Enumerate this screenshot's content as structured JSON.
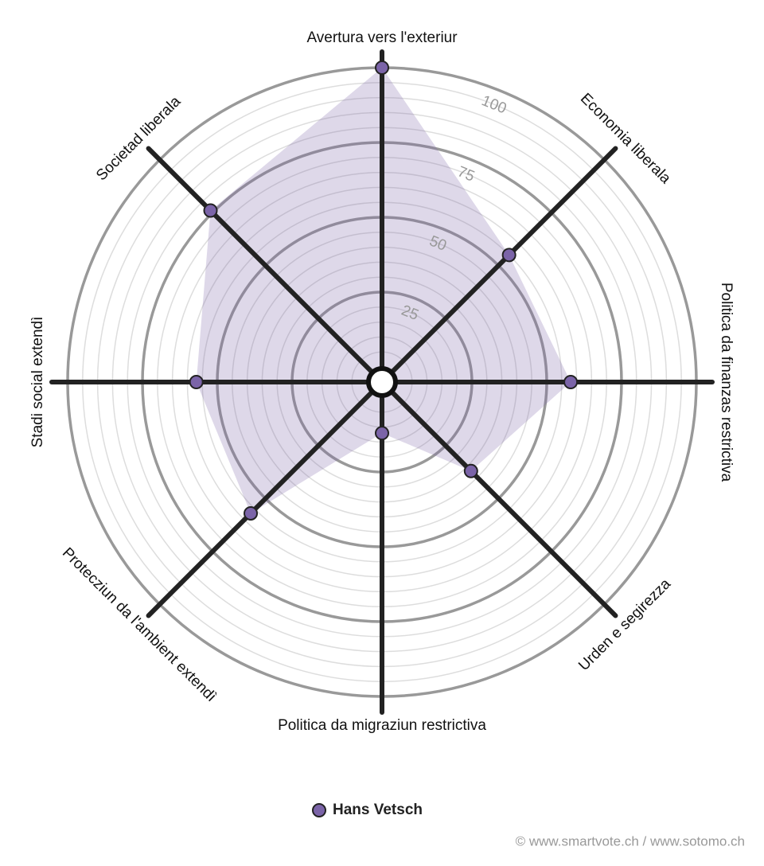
{
  "chart_data": {
    "type": "radar",
    "categories": [
      "Avertura vers l'exteriur",
      "Economia liberala",
      "Politica da finanzas restrictiva",
      "Urden e segirezza",
      "Politica da migraziun restrictiva",
      "Protecziun da l'ambient extendì",
      "Stadi social extendì",
      "Societad liberala"
    ],
    "series": [
      {
        "name": "Hans Vetsch",
        "color": "#7b64a8",
        "values": [
          100,
          55,
          58,
          37,
          12,
          57,
          57,
          76
        ]
      }
    ],
    "rlim": [
      0,
      100
    ],
    "rticks": [
      25,
      50,
      75,
      100
    ],
    "footer": "© www.smartvote.ch / www.sotomo.ch"
  }
}
